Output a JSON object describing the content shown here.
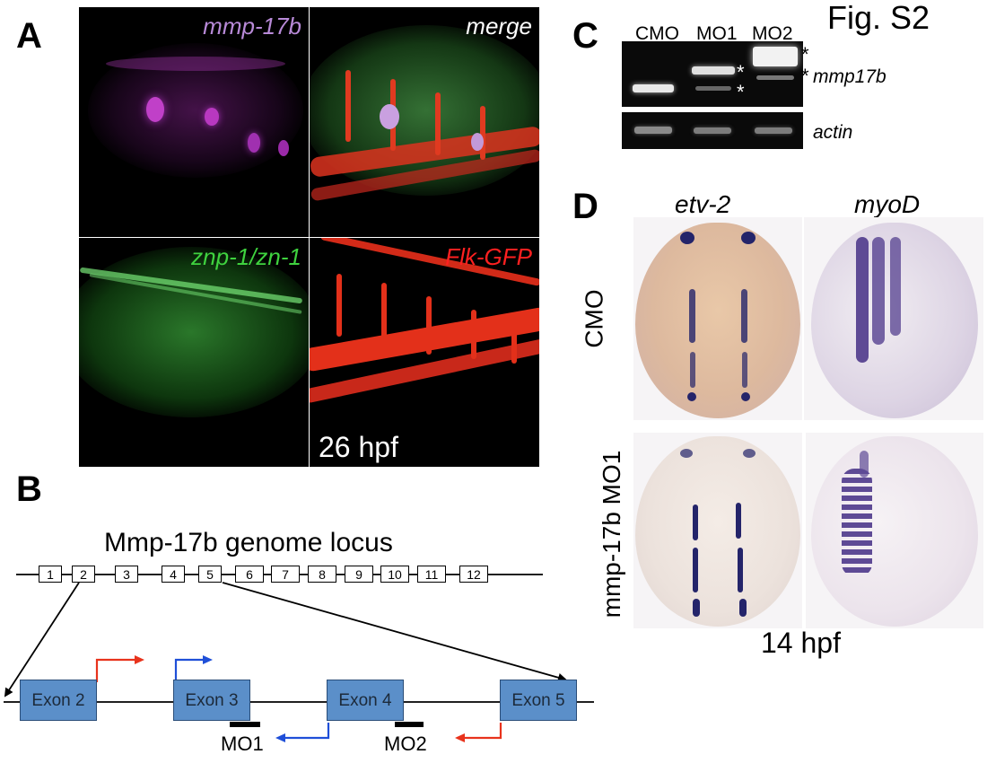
{
  "figure_label": "Fig. S2",
  "panels": {
    "A": {
      "letter": "A",
      "images": [
        {
          "label": "mmp-17b",
          "label_color": "#b88ad8"
        },
        {
          "label": "merge",
          "label_color": "#ffffff"
        },
        {
          "label": "znp-1/zn-1",
          "label_color": "#3fd23f"
        },
        {
          "label": "Flk-GFP",
          "label_color": "#ff2020"
        }
      ],
      "stage": "26 hpf"
    },
    "B": {
      "letter": "B",
      "title": "Mmp-17b genome locus",
      "exons": [
        "1",
        "2",
        "3",
        "4",
        "5",
        "6",
        "7",
        "8",
        "9",
        "10",
        "11",
        "12"
      ],
      "zoom_exons": [
        "Exon 2",
        "Exon 3",
        "Exon 4",
        "Exon 5"
      ],
      "morpholinos": [
        "MO1",
        "MO2"
      ],
      "colors": {
        "exon_fill": "#5b8fc9",
        "primer_red": "#e8331c",
        "primer_blue": "#1f4fd8"
      }
    },
    "C": {
      "letter": "C",
      "lanes": [
        "CMO",
        "MO1",
        "MO2"
      ],
      "genes": [
        "mmp17b",
        "actin"
      ],
      "stars": [
        "*",
        "*",
        "*",
        "*"
      ]
    },
    "D": {
      "letter": "D",
      "columns": [
        "etv-2",
        "myoD"
      ],
      "rows": [
        "CMO",
        "mmp-17b MO1"
      ],
      "stage": "14 hpf",
      "colors": {
        "stain": "#24246a",
        "somite": "#5e4a95"
      }
    }
  }
}
